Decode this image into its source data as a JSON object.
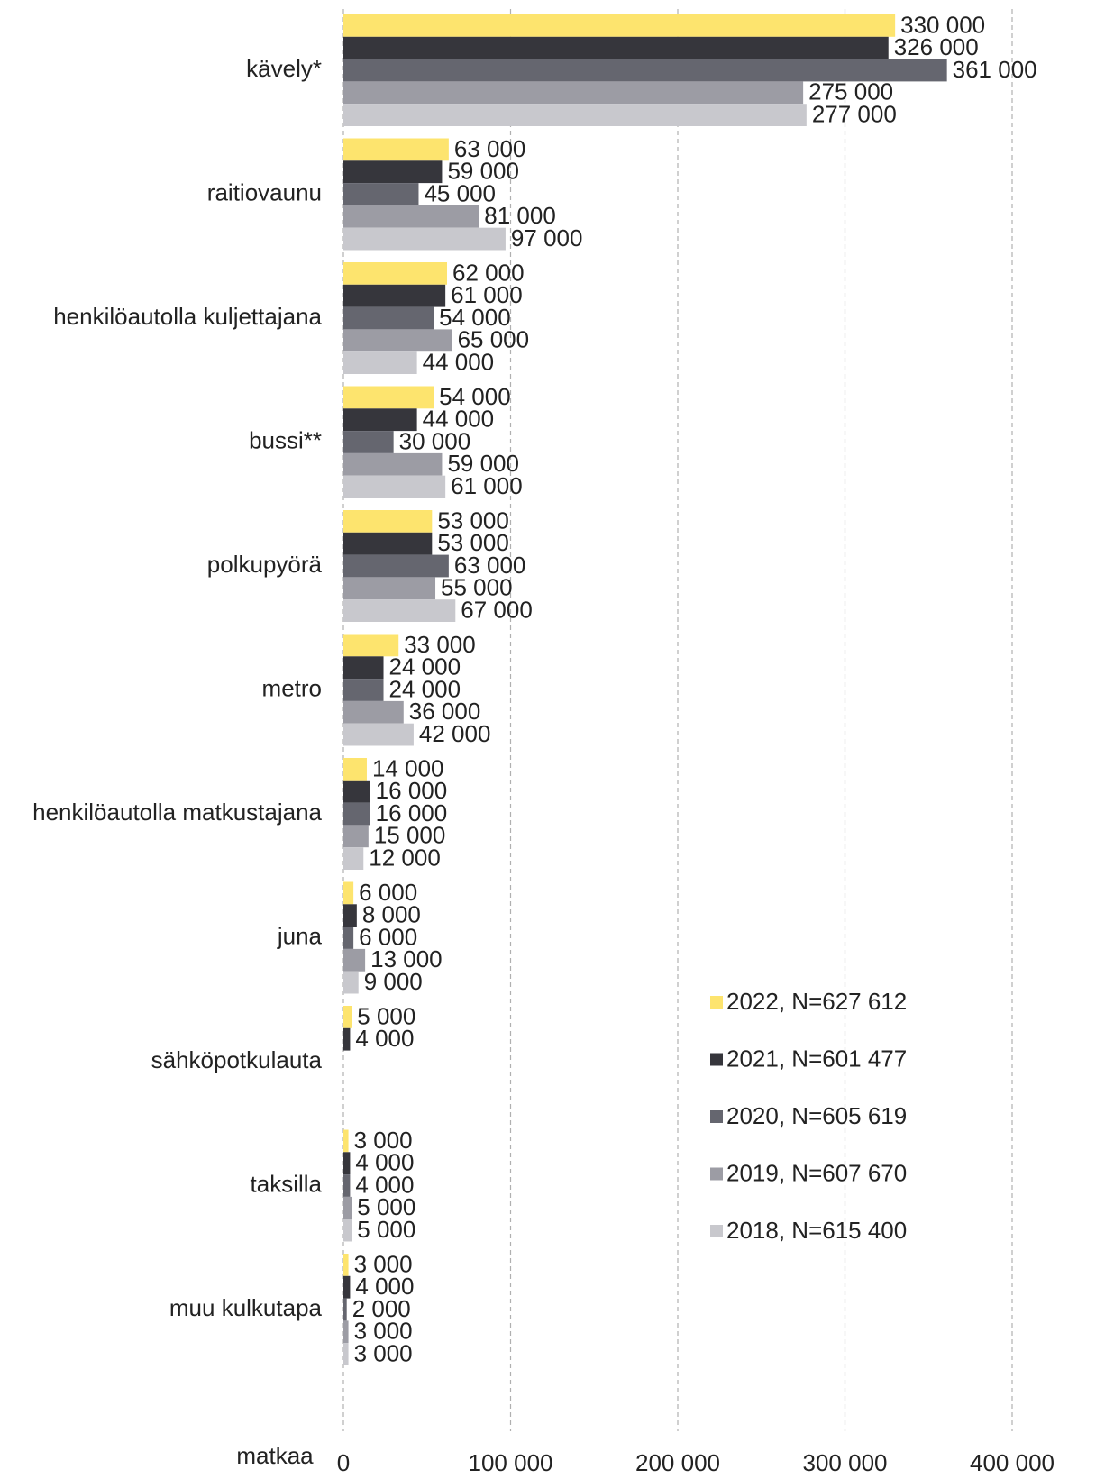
{
  "chart_data": {
    "type": "barh",
    "xlabel": "matkaa",
    "categories": [
      "kävely*",
      "raitiovaunu",
      "henkilöautolla kuljettajana",
      "bussi**",
      "polkupyörä",
      "metro",
      "henkilöautolla matkustajana",
      "juna",
      "sähköpotkulauta",
      "taksilla",
      "muu kulkutapa"
    ],
    "series": [
      {
        "name": "2022, N=627 612",
        "color": "#fde46e",
        "values": [
          330000,
          63000,
          62000,
          54000,
          53000,
          33000,
          14000,
          6000,
          5000,
          3000,
          3000
        ],
        "value_labels": [
          "330 000",
          "63 000",
          "62 000",
          "54 000",
          "53 000",
          "33 000",
          "14 000",
          "6 000",
          "5 000",
          "3 000",
          "3 000"
        ]
      },
      {
        "name": "2021, N=601 477",
        "color": "#36363c",
        "values": [
          326000,
          59000,
          61000,
          44000,
          53000,
          24000,
          16000,
          8000,
          4000,
          4000,
          4000
        ],
        "value_labels": [
          "326 000",
          "59 000",
          "61 000",
          "44 000",
          "53 000",
          "24 000",
          "16 000",
          "8 000",
          "4 000",
          "4 000",
          "4 000"
        ]
      },
      {
        "name": "2020, N=605 619",
        "color": "#65666f",
        "values": [
          361000,
          45000,
          54000,
          30000,
          63000,
          24000,
          16000,
          6000,
          null,
          4000,
          2000
        ],
        "value_labels": [
          "361 000",
          "45 000",
          "54 000",
          "30 000",
          "63 000",
          "24 000",
          "16 000",
          "6 000",
          null,
          "4 000",
          "2 000"
        ]
      },
      {
        "name": "2019, N=607 670",
        "color": "#9c9ca4",
        "values": [
          275000,
          81000,
          65000,
          59000,
          55000,
          36000,
          15000,
          13000,
          null,
          5000,
          3000
        ],
        "value_labels": [
          "275 000",
          "81 000",
          "65 000",
          "59 000",
          "55 000",
          "36 000",
          "15 000",
          "13 000",
          null,
          "5 000",
          "3 000"
        ]
      },
      {
        "name": "2018, N=615 400",
        "color": "#c8c8cd",
        "values": [
          277000,
          97000,
          44000,
          61000,
          67000,
          42000,
          12000,
          9000,
          null,
          5000,
          3000
        ],
        "value_labels": [
          "277 000",
          "97 000",
          "44 000",
          "61 000",
          "67 000",
          "42 000",
          "12 000",
          "9 000",
          null,
          "5 000",
          "3 000"
        ]
      }
    ],
    "xlim": [
      0,
      420000
    ],
    "xticks": [
      0,
      {
        "value": 100000,
        "label": "100 000"
      },
      {
        "value": 200000,
        "label": "200 000"
      },
      {
        "value": 300000,
        "label": "300 000"
      },
      {
        "value": 400000,
        "label": "400 000"
      }
    ],
    "grid": true,
    "legend": "lower right"
  }
}
